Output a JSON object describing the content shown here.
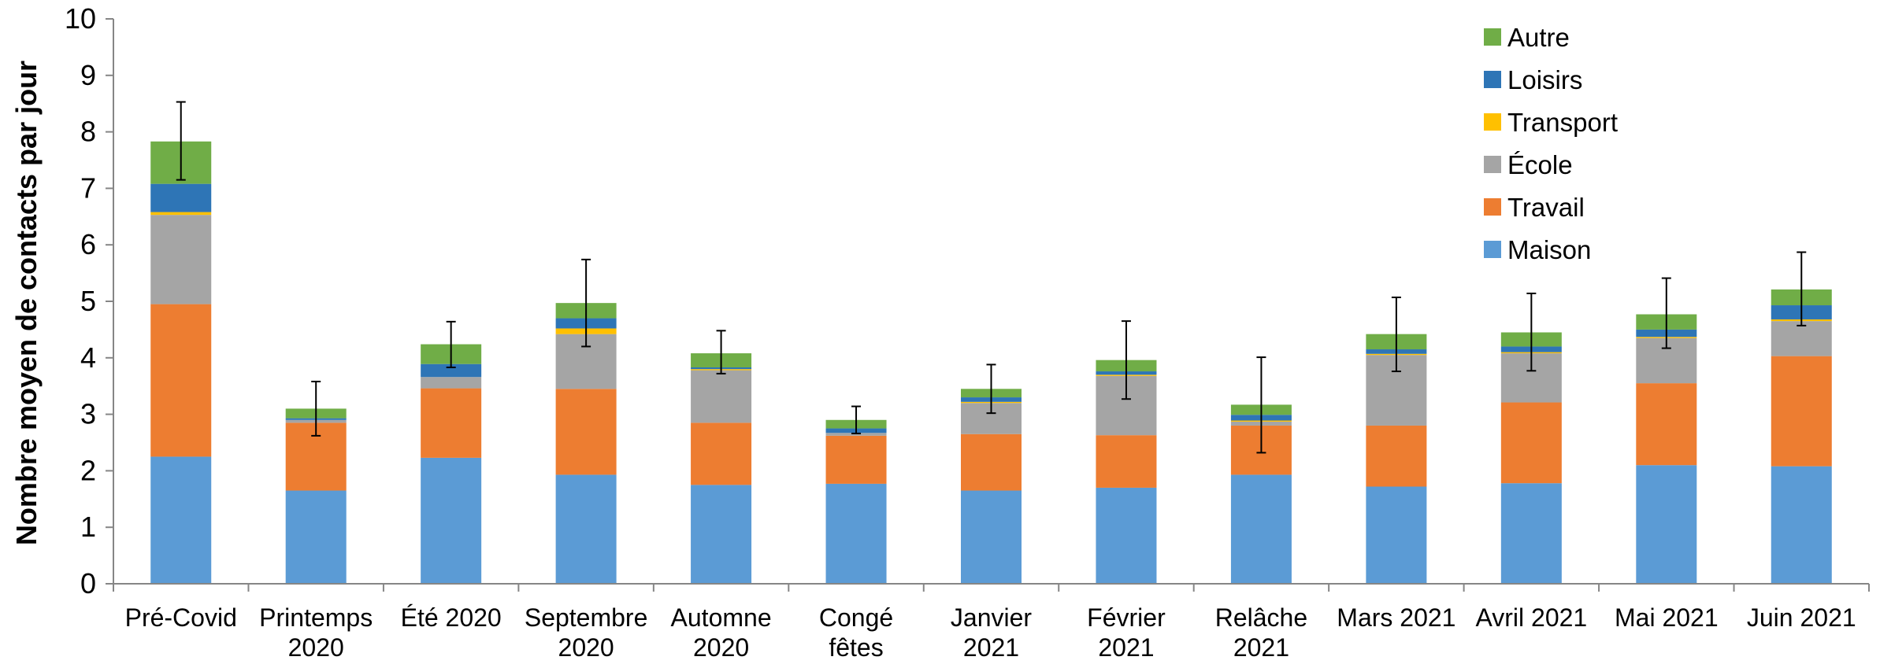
{
  "chart_data": {
    "type": "bar",
    "stacked": true,
    "ylabel": "Nombre moyen de contacts par jour",
    "ylim": [
      0,
      10
    ],
    "yticks": [
      0,
      1,
      2,
      3,
      4,
      5,
      6,
      7,
      8,
      9,
      10
    ],
    "grid": false,
    "legend_position": "top-right",
    "categories": [
      [
        "Pré-Covid"
      ],
      [
        "Printemps",
        "2020"
      ],
      [
        "Été 2020"
      ],
      [
        "Septembre",
        "2020"
      ],
      [
        "Automne",
        "2020"
      ],
      [
        "Congé",
        "fêtes"
      ],
      [
        "Janvier",
        "2021"
      ],
      [
        "Février",
        "2021"
      ],
      [
        "Relâche",
        "2021"
      ],
      [
        "Mars 2021"
      ],
      [
        "Avril 2021"
      ],
      [
        "Mai 2021"
      ],
      [
        "Juin 2021"
      ]
    ],
    "series": [
      {
        "name": "Maison",
        "color": "#5B9BD5",
        "values": [
          2.25,
          1.65,
          2.23,
          1.93,
          1.75,
          1.77,
          1.65,
          1.7,
          1.93,
          1.72,
          1.78,
          2.1,
          2.08
        ]
      },
      {
        "name": "Travail",
        "color": "#ED7D31",
        "values": [
          2.7,
          1.2,
          1.23,
          1.52,
          1.1,
          0.85,
          1.0,
          0.93,
          0.87,
          1.08,
          1.43,
          1.45,
          1.95
        ]
      },
      {
        "name": "École",
        "color": "#A5A5A5",
        "values": [
          1.58,
          0.05,
          0.2,
          0.97,
          0.93,
          0.05,
          0.55,
          1.05,
          0.07,
          1.25,
          0.87,
          0.8,
          0.62
        ]
      },
      {
        "name": "Transport",
        "color": "#FFC000",
        "values": [
          0.05,
          0.0,
          0.0,
          0.1,
          0.02,
          0.0,
          0.02,
          0.02,
          0.02,
          0.02,
          0.02,
          0.02,
          0.03
        ]
      },
      {
        "name": "Loisirs",
        "color": "#2E75B6",
        "values": [
          0.5,
          0.03,
          0.23,
          0.18,
          0.03,
          0.08,
          0.08,
          0.06,
          0.1,
          0.08,
          0.1,
          0.13,
          0.25
        ]
      },
      {
        "name": "Autre",
        "color": "#70AD47",
        "values": [
          0.75,
          0.17,
          0.35,
          0.27,
          0.25,
          0.15,
          0.15,
          0.2,
          0.18,
          0.27,
          0.25,
          0.27,
          0.28
        ]
      }
    ],
    "error_bars": {
      "lower": [
        7.15,
        2.62,
        3.83,
        4.2,
        3.72,
        2.66,
        3.02,
        3.27,
        2.32,
        3.76,
        3.77,
        4.17,
        4.57
      ],
      "upper": [
        8.53,
        3.58,
        4.64,
        5.74,
        4.48,
        3.14,
        3.88,
        4.65,
        4.01,
        5.07,
        5.14,
        5.41,
        5.87
      ]
    }
  }
}
